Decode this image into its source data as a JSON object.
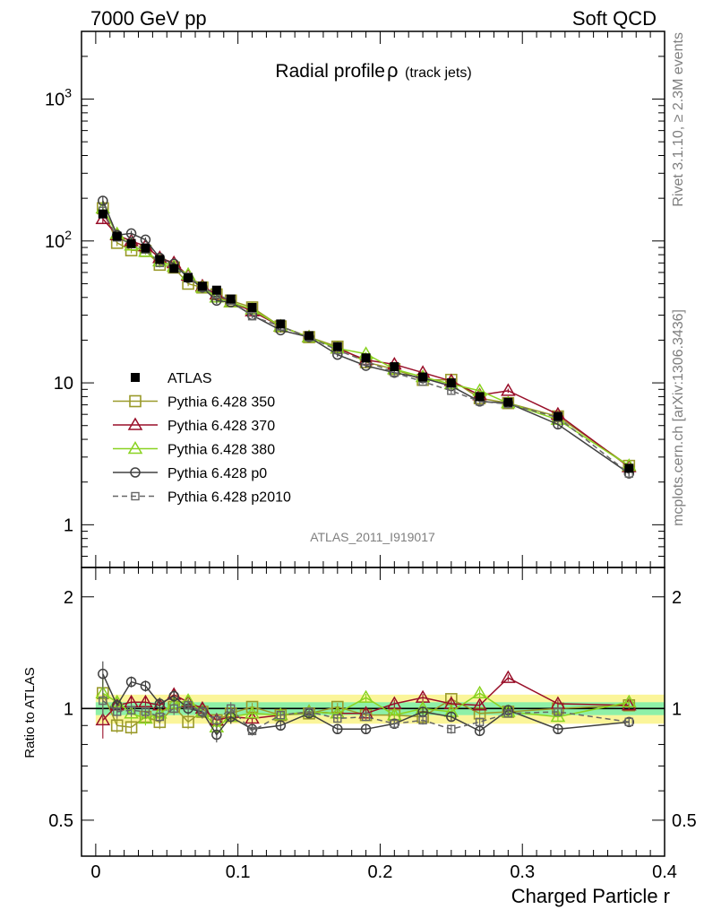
{
  "header": {
    "left": "7000 GeV pp",
    "right": "Soft QCD"
  },
  "side_labels": {
    "rivet": "Rivet 3.1.10, ≥ 2.3M events",
    "mcplots": "mcplots.cern.ch [arXiv:1306.3436]"
  },
  "chart_data": [
    {
      "type": "line",
      "panel": "main",
      "title": "Radial profile",
      "title_symbol": "ρ",
      "title_suffix": "(track jets)",
      "analysis_id": "ATLAS_2011_I919017",
      "yscale": "log",
      "xlim": [
        -0.01,
        0.4
      ],
      "ylim": [
        0.5,
        3000
      ],
      "x_ticks": [
        0,
        0.1,
        0.2,
        0.3,
        0.4
      ],
      "y_tick_labels": [
        {
          "value": 1,
          "base": "1",
          "exp": ""
        },
        {
          "value": 10,
          "base": "10",
          "exp": ""
        },
        {
          "value": 100,
          "base": "10",
          "exp": "2"
        },
        {
          "value": 1000,
          "base": "10",
          "exp": "3"
        }
      ],
      "legend_position": "lower-left",
      "x": [
        0.005,
        0.015,
        0.025,
        0.035,
        0.045,
        0.055,
        0.065,
        0.075,
        0.085,
        0.095,
        0.11,
        0.13,
        0.15,
        0.17,
        0.19,
        0.21,
        0.23,
        0.25,
        0.27,
        0.29,
        0.325,
        0.375
      ],
      "series": [
        {
          "name": "ATLAS",
          "color": "#000000",
          "marker": "filled-square",
          "line": "none",
          "values": [
            155,
            108,
            96,
            89,
            74,
            64,
            55,
            48,
            45,
            39,
            34,
            26,
            21.5,
            18,
            15,
            13,
            11,
            10,
            8,
            7.3,
            5.8,
            2.5
          ],
          "errors": [
            8,
            4,
            3,
            3,
            2,
            2,
            2,
            1.5,
            1.5,
            1,
            1,
            0.8,
            0.6,
            0.5,
            0.4,
            0.4,
            0.3,
            0.3,
            0.3,
            0.3,
            0.2,
            0.1
          ]
        },
        {
          "name": "Pythia 6.428 350",
          "color": "#9a9a2a",
          "marker": "open-square",
          "line": "solid",
          "values": [
            170,
            97,
            86,
            85,
            68,
            65,
            50,
            47,
            42,
            38,
            34,
            25,
            21,
            18,
            14,
            12.5,
            10.5,
            10.5,
            7.8,
            7.2,
            5.8,
            2.6
          ],
          "errors": [
            12,
            5,
            4,
            4,
            3,
            3,
            2,
            2,
            2,
            1.5,
            1,
            0.8,
            0.7,
            0.6,
            0.5,
            0.5,
            0.4,
            0.4,
            0.3,
            0.3,
            0.3,
            0.1
          ]
        },
        {
          "name": "Pythia 6.428 370",
          "color": "#990f29",
          "marker": "open-triangle",
          "line": "solid",
          "values": [
            143,
            110,
            100,
            92,
            76,
            70,
            57,
            48,
            42,
            37,
            32,
            25,
            21,
            17.5,
            14.5,
            13.5,
            11.8,
            10.3,
            8.2,
            8.8,
            6,
            2.55
          ],
          "errors": [
            10,
            5,
            4,
            4,
            3,
            3,
            2,
            2,
            2,
            1.5,
            1,
            0.8,
            0.7,
            0.6,
            0.5,
            0.5,
            0.4,
            0.4,
            0.3,
            0.3,
            0.3,
            0.1
          ]
        },
        {
          "name": "Pythia 6.428 380",
          "color": "#8ad321",
          "marker": "open-triangle",
          "line": "solid",
          "values": [
            170,
            112,
            93,
            84,
            72,
            66,
            58,
            47,
            40,
            37,
            33,
            25,
            21,
            17.5,
            16,
            12.5,
            11,
            9.8,
            8.8,
            7.2,
            5.5,
            2.6
          ],
          "errors": [
            12,
            5,
            4,
            4,
            3,
            3,
            2,
            2,
            2,
            1.5,
            1,
            0.8,
            0.7,
            0.6,
            0.5,
            0.5,
            0.4,
            0.4,
            0.3,
            0.3,
            0.3,
            0.1
          ]
        },
        {
          "name": "Pythia 6.428 p0",
          "color": "#404040",
          "marker": "open-circle",
          "line": "solid",
          "values": [
            192,
            110,
            113,
            102,
            76,
            69,
            55,
            47,
            38,
            37,
            30,
            23.5,
            21,
            15.8,
            13.2,
            11.8,
            10.8,
            9.5,
            7.4,
            7.2,
            5.1,
            2.3
          ],
          "errors": [
            14,
            5,
            5,
            4,
            3,
            3,
            2,
            2,
            2,
            1.5,
            1,
            0.8,
            0.7,
            0.6,
            0.5,
            0.5,
            0.4,
            0.4,
            0.3,
            0.3,
            0.3,
            0.1
          ]
        },
        {
          "name": "Pythia 6.428 p2010",
          "color": "#666666",
          "marker": "open-square-small",
          "line": "dashed",
          "values": [
            163,
            106,
            95,
            87,
            70,
            64,
            56,
            47,
            42,
            38,
            29.5,
            25,
            21,
            17,
            14.2,
            11.8,
            10.2,
            8.8,
            7.4,
            7.1,
            5.7,
            2.3
          ],
          "errors": [
            12,
            5,
            4,
            4,
            3,
            3,
            2,
            2,
            2,
            1.5,
            1,
            0.8,
            0.7,
            0.6,
            0.5,
            0.5,
            0.4,
            0.4,
            0.3,
            0.3,
            0.3,
            0.1
          ]
        }
      ]
    },
    {
      "type": "line",
      "panel": "ratio",
      "xlabel": "Charged Particle r",
      "ylabel": "Ratio to ATLAS",
      "yscale": "log",
      "xlim": [
        -0.01,
        0.4
      ],
      "ylim": [
        0.4,
        2.4
      ],
      "x_ticks": [
        0,
        0.1,
        0.2,
        0.3,
        0.4
      ],
      "y_ticks": [
        0.5,
        1,
        2
      ],
      "band_inner": [
        0.96,
        1.04
      ],
      "band_outer": [
        0.91,
        1.09
      ],
      "x": [
        0.005,
        0.015,
        0.025,
        0.035,
        0.045,
        0.055,
        0.065,
        0.075,
        0.085,
        0.095,
        0.11,
        0.13,
        0.15,
        0.17,
        0.19,
        0.21,
        0.23,
        0.25,
        0.27,
        0.29,
        0.325,
        0.375
      ],
      "series": [
        {
          "name": "Pythia 6.428 350",
          "color": "#9a9a2a",
          "values": [
            1.1,
            0.9,
            0.89,
            0.95,
            0.92,
            1.01,
            0.92,
            0.98,
            0.93,
            0.97,
            1.01,
            0.96,
            0.97,
            1.01,
            0.96,
            0.96,
            0.95,
            1.06,
            0.97,
            0.98,
            1.0,
            1.02
          ]
        },
        {
          "name": "Pythia 6.428 370",
          "color": "#990f29",
          "values": [
            0.93,
            1.02,
            1.04,
            1.04,
            1.02,
            1.09,
            1.04,
            1.0,
            0.93,
            0.95,
            0.94,
            0.96,
            0.98,
            0.97,
            0.97,
            1.03,
            1.07,
            1.03,
            1.02,
            1.21,
            1.03,
            1.02
          ]
        },
        {
          "name": "Pythia 6.428 380",
          "color": "#8ad321",
          "values": [
            1.1,
            1.04,
            0.97,
            0.94,
            0.97,
            1.03,
            1.05,
            0.98,
            0.89,
            0.95,
            0.97,
            0.96,
            0.98,
            0.97,
            1.07,
            0.96,
            1.0,
            0.98,
            1.1,
            0.98,
            0.95,
            1.04
          ]
        },
        {
          "name": "Pythia 6.428 p0",
          "color": "#404040",
          "values": [
            1.24,
            1.02,
            1.18,
            1.15,
            1.03,
            1.08,
            1.0,
            0.98,
            0.85,
            0.95,
            0.88,
            0.9,
            0.97,
            0.88,
            0.88,
            0.91,
            0.98,
            0.95,
            0.87,
            0.99,
            0.88,
            0.92
          ]
        },
        {
          "name": "Pythia 6.428 p2010",
          "color": "#666666",
          "values": [
            1.05,
            0.98,
            0.99,
            0.98,
            0.95,
            1.0,
            1.02,
            0.98,
            0.93,
            1.0,
            0.87,
            0.96,
            0.98,
            0.94,
            0.95,
            0.91,
            0.93,
            0.88,
            0.92,
            0.97,
            0.98,
            0.92
          ]
        }
      ]
    }
  ]
}
